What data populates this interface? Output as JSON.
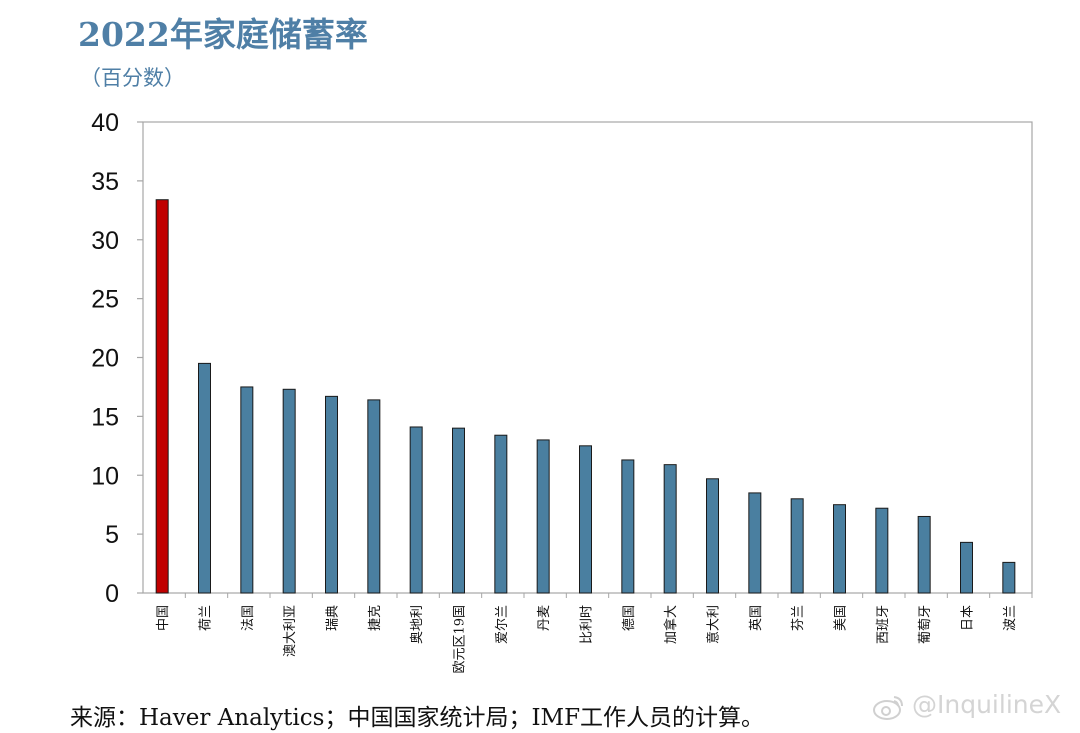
{
  "chart_data": {
    "type": "bar",
    "title": "2022年家庭储蓄率",
    "subtitle": "（百分数）",
    "categories": [
      "中国",
      "荷兰",
      "法国",
      "澳大利亚",
      "瑞典",
      "捷克",
      "奥地利",
      "欧元区19国",
      "爱尔兰",
      "丹麦",
      "比利时",
      "德国",
      "加拿大",
      "意大利",
      "英国",
      "芬兰",
      "美国",
      "西班牙",
      "葡萄牙",
      "日本",
      "波兰"
    ],
    "values": [
      33.4,
      19.5,
      17.5,
      17.3,
      16.7,
      16.4,
      14.1,
      14.0,
      13.4,
      13.0,
      12.5,
      11.3,
      10.9,
      9.7,
      8.5,
      8.0,
      7.5,
      7.2,
      6.5,
      4.3,
      2.6
    ],
    "highlight_index": 0,
    "ylim": [
      0,
      40
    ],
    "yticks": [
      "0",
      "5",
      "10",
      "15",
      "20",
      "25",
      "30",
      "35",
      "40"
    ],
    "xlabel": "",
    "ylabel": "",
    "colors": {
      "highlight": "#c00000",
      "bar": "#4a7fa0",
      "axis": "#a6a6a6",
      "title": "#4f7fa6"
    }
  },
  "footer": {
    "source": "来源：Haver Analytics；中国国家统计局；IMF工作人员的计算。",
    "watermark": "@InquilineX"
  }
}
